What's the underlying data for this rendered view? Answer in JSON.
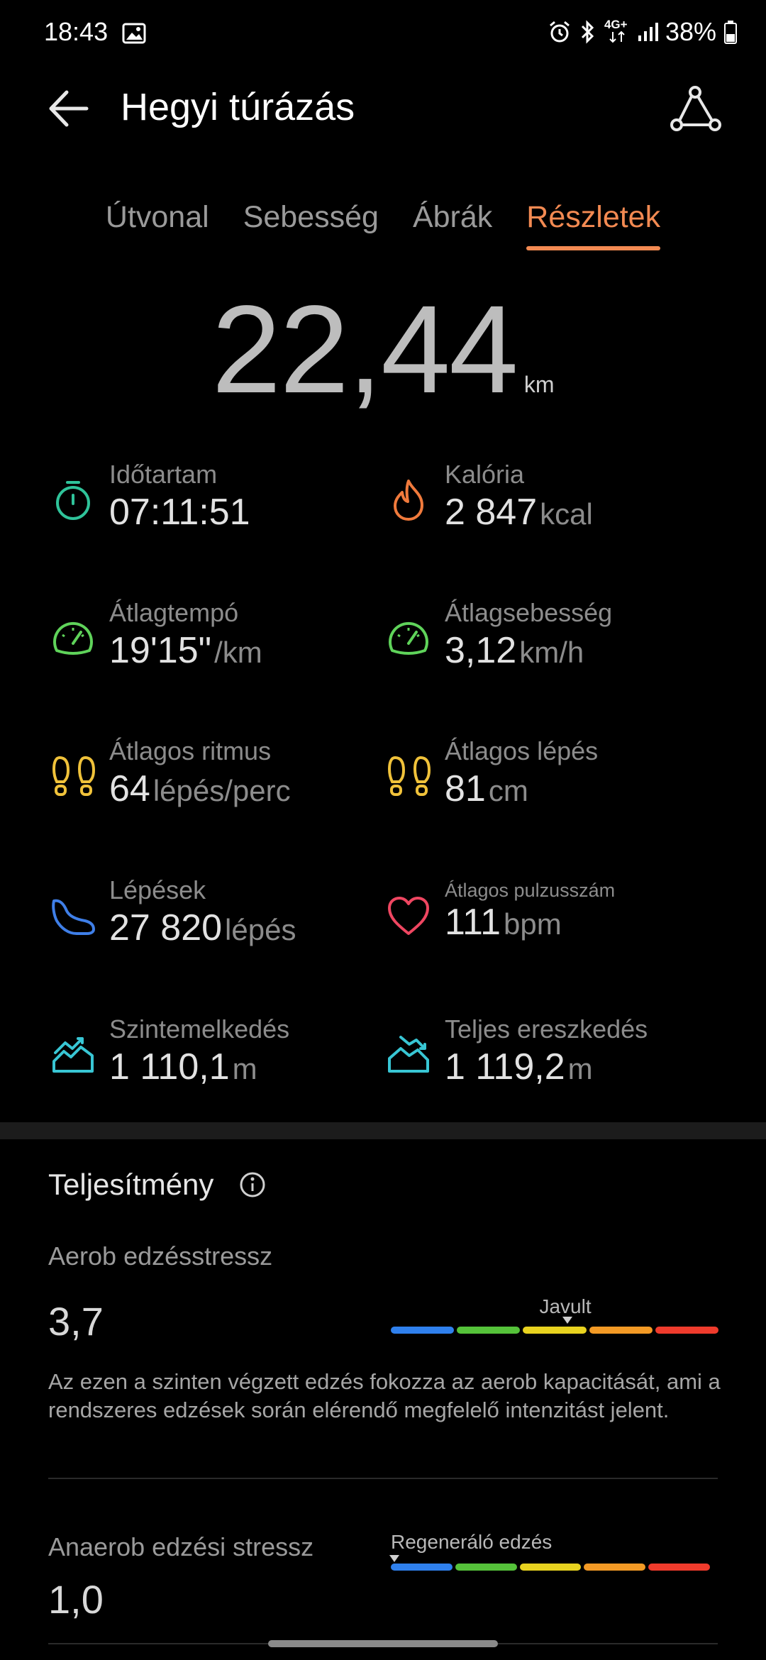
{
  "status_bar": {
    "time": "18:43",
    "network": "4G+",
    "battery": "38%",
    "icons": [
      "gallery-icon",
      "alarm-icon",
      "bluetooth-icon",
      "data-arrows-icon",
      "signal-icon",
      "battery-icon"
    ]
  },
  "header": {
    "title": "Hegyi túrázás",
    "icons": [
      "back-arrow-icon",
      "route-share-icon"
    ]
  },
  "tabs": [
    {
      "label": "Útvonal",
      "active": false
    },
    {
      "label": "Sebesség",
      "active": false
    },
    {
      "label": "Ábrák",
      "active": false
    },
    {
      "label": "Részletek",
      "active": true
    }
  ],
  "distance": {
    "value": "22,44",
    "unit": "km"
  },
  "stats": {
    "duration": {
      "label": "Időtartam",
      "value": "07:11:51",
      "unit": "",
      "icon": "stopwatch-icon"
    },
    "calories": {
      "label": "Kalória",
      "value": "2 847",
      "unit": "kcal",
      "icon": "flame-icon"
    },
    "avg_pace": {
      "label": "Átlagtempó",
      "value": "19'15\"",
      "unit": "/km",
      "icon": "speedometer-icon"
    },
    "avg_speed": {
      "label": "Átlagsebesség",
      "value": "3,12",
      "unit": "km/h",
      "icon": "speedometer-icon"
    },
    "avg_cadence": {
      "label": "Átlagos ritmus",
      "value": "64",
      "unit": "lépés/perc",
      "icon": "footprints-icon"
    },
    "avg_stride": {
      "label": "Átlagos lépés",
      "value": "81",
      "unit": "cm",
      "icon": "footprints-icon"
    },
    "steps": {
      "label": "Lépések",
      "value": "27 820",
      "unit": "lépés",
      "icon": "shoe-icon"
    },
    "avg_hr": {
      "label": "Átlagos pulzusszám",
      "value": "111",
      "unit": "bpm",
      "icon": "heart-icon"
    },
    "ascent": {
      "label": "Szintemelkedés",
      "value": "1 110,1",
      "unit": "m",
      "icon": "ascent-icon"
    },
    "descent": {
      "label": "Teljes ereszkedés",
      "value": "1 119,2",
      "unit": "m",
      "icon": "descent-icon"
    }
  },
  "performance": {
    "title": "Teljesítmény",
    "aerob": {
      "label": "Aerob edzésstressz",
      "value": "3,7",
      "scale_label": "Javult",
      "marker_fraction": 0.54,
      "description": "Az ezen a szinten végzett edzés fokozza az aerob kapacitását, ami a rendszeres edzések során elérendő megfelelő intenzitást jelent."
    },
    "anaerob": {
      "label": "Anaerob edzési stressz",
      "value": "1,0",
      "scale_label": "Regeneráló edzés",
      "marker_fraction": 0.01
    },
    "scale_colors": [
      "#2f80ed",
      "#55c23a",
      "#e8d21f",
      "#f39a25",
      "#ef3b2c"
    ]
  },
  "colors": {
    "accent": "#f38a52",
    "stopwatch": "#2fc39a",
    "flame": "#f07a3c",
    "speedometer": "#5fd35a",
    "footprints": "#f0c23a",
    "shoe": "#3f7fe8",
    "heart": "#ef4661",
    "elevation": "#38c6d4"
  }
}
